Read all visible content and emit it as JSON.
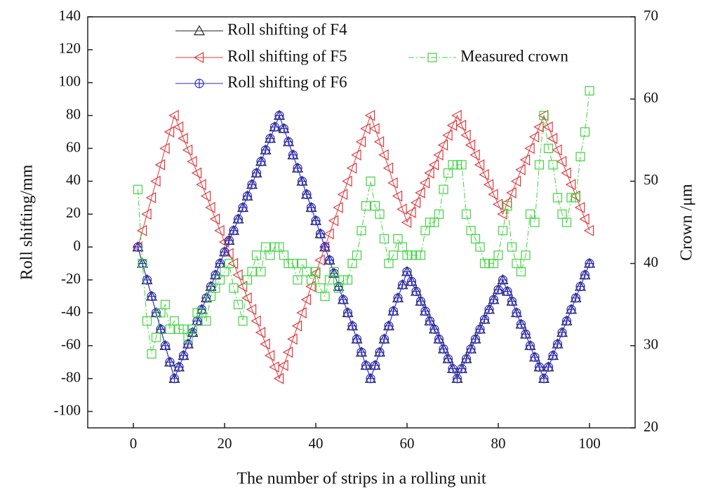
{
  "chart_data": {
    "type": "line",
    "x_label": "The number of strips in a rolling unit",
    "y_label": "Roll shifting/mm",
    "y2_label": "Crown /μm",
    "x": [
      1,
      2,
      3,
      4,
      5,
      6,
      7,
      8,
      9,
      10,
      11,
      12,
      13,
      14,
      15,
      16,
      17,
      18,
      19,
      20,
      21,
      22,
      23,
      24,
      25,
      26,
      27,
      28,
      29,
      30,
      31,
      32,
      33,
      34,
      35,
      36,
      37,
      38,
      39,
      40,
      41,
      42,
      43,
      44,
      45,
      46,
      47,
      48,
      49,
      50,
      51,
      52,
      53,
      54,
      55,
      56,
      57,
      58,
      59,
      60,
      61,
      62,
      63,
      64,
      65,
      66,
      67,
      68,
      69,
      70,
      71,
      72,
      73,
      74,
      75,
      76,
      77,
      78,
      79,
      80,
      81,
      82,
      83,
      84,
      85,
      86,
      87,
      88,
      89,
      90,
      91,
      92,
      93,
      94,
      95,
      96,
      97,
      98,
      99,
      100
    ],
    "xlim": [
      -10,
      110
    ],
    "xticks": [
      0,
      20,
      40,
      60,
      80,
      100
    ],
    "ylim": [
      -110,
      140
    ],
    "yticks": [
      -100,
      -80,
      -60,
      -40,
      -20,
      0,
      20,
      40,
      60,
      80,
      100,
      120,
      140
    ],
    "y2lim": [
      20,
      70
    ],
    "y2ticks": [
      20,
      30,
      40,
      50,
      60,
      70
    ],
    "series": [
      {
        "name": "Roll shifting of F4",
        "color": "#222222",
        "marker": "triangle-up",
        "line": "solid",
        "values": [
          0,
          -10,
          -20,
          -30,
          -40,
          -50,
          -60,
          -70,
          -80,
          -73,
          -66,
          -59,
          -52,
          -45,
          -38,
          -31,
          -24,
          -17,
          -10,
          -3,
          4,
          10,
          17,
          24,
          31,
          38,
          45,
          52,
          59,
          66,
          73,
          80,
          72,
          64,
          56,
          48,
          40,
          32,
          24,
          16,
          8,
          0,
          -8,
          -16,
          -24,
          -32,
          -40,
          -48,
          -56,
          -64,
          -72,
          -80,
          -72,
          -64,
          -56,
          -48,
          -39,
          -31,
          -23,
          -15,
          -21,
          -27,
          -33,
          -39,
          -45,
          -50,
          -56,
          -62,
          -68,
          -74,
          -80,
          -74,
          -68,
          -62,
          -56,
          -50,
          -44,
          -38,
          -32,
          -26,
          -20,
          -27,
          -33,
          -40,
          -47,
          -53,
          -60,
          -67,
          -73,
          -80,
          -73,
          -66,
          -59,
          -52,
          -45,
          -38,
          -31,
          -24,
          -17,
          -10
        ]
      },
      {
        "name": "Roll shifting of F5",
        "color": "#e0383c",
        "marker": "triangle-left",
        "line": "solid",
        "values": [
          0,
          10,
          20,
          30,
          40,
          50,
          60,
          70,
          80,
          73,
          66,
          59,
          52,
          45,
          38,
          31,
          24,
          17,
          10,
          3,
          -4,
          -10,
          -17,
          -24,
          -31,
          -38,
          -45,
          -52,
          -59,
          -66,
          -73,
          -80,
          -72,
          -64,
          -56,
          -48,
          -40,
          -32,
          -24,
          -16,
          -8,
          0,
          8,
          16,
          24,
          32,
          40,
          48,
          56,
          64,
          72,
          80,
          72,
          64,
          56,
          48,
          39,
          31,
          23,
          15,
          21,
          27,
          33,
          39,
          45,
          50,
          56,
          62,
          68,
          74,
          80,
          74,
          68,
          62,
          56,
          50,
          44,
          38,
          32,
          26,
          20,
          27,
          33,
          40,
          47,
          53,
          60,
          67,
          73,
          80,
          73,
          66,
          59,
          52,
          45,
          38,
          31,
          24,
          17,
          10
        ]
      },
      {
        "name": "Roll shifting of F6",
        "color": "#2b2bd0",
        "marker": "circle-plus",
        "line": "solid",
        "values": [
          0,
          -10,
          -20,
          -30,
          -40,
          -50,
          -60,
          -70,
          -80,
          -73,
          -66,
          -59,
          -52,
          -45,
          -38,
          -31,
          -24,
          -17,
          -10,
          -3,
          4,
          10,
          17,
          24,
          31,
          38,
          45,
          52,
          59,
          66,
          73,
          80,
          72,
          64,
          56,
          48,
          40,
          32,
          24,
          16,
          8,
          0,
          -8,
          -16,
          -24,
          -32,
          -40,
          -48,
          -56,
          -64,
          -72,
          -80,
          -72,
          -64,
          -56,
          -48,
          -39,
          -31,
          -23,
          -15,
          -21,
          -27,
          -33,
          -39,
          -45,
          -50,
          -56,
          -62,
          -68,
          -74,
          -80,
          -74,
          -68,
          -62,
          -56,
          -50,
          -44,
          -38,
          -32,
          -26,
          -20,
          -27,
          -33,
          -40,
          -47,
          -53,
          -60,
          -67,
          -73,
          -80,
          -73,
          -66,
          -59,
          -52,
          -45,
          -38,
          -31,
          -24,
          -17,
          -10
        ]
      },
      {
        "name": "Measured crown",
        "color": "#3fd33f",
        "marker": "square",
        "line": "dashdot",
        "axis": "y2",
        "values": [
          49,
          40,
          33,
          29,
          31,
          34,
          35,
          32,
          33,
          32,
          32,
          31,
          32,
          34,
          34,
          33,
          36,
          37,
          38,
          39,
          40,
          37,
          35,
          33,
          38,
          39,
          41,
          39,
          42,
          41,
          42,
          42,
          41,
          40,
          40,
          38,
          40,
          39,
          38,
          39,
          37,
          36,
          38,
          39,
          37,
          38,
          38,
          40,
          41,
          44,
          47,
          50,
          47,
          46,
          43,
          40,
          41,
          43,
          42,
          41,
          41,
          41,
          41,
          44,
          45,
          45,
          46,
          49,
          51,
          52,
          52,
          52,
          46,
          44,
          43,
          42,
          40,
          40,
          40,
          41,
          44,
          47,
          42,
          40,
          39,
          41,
          46,
          45,
          52,
          58,
          54,
          52,
          48,
          46,
          45,
          48,
          48,
          53,
          56,
          61
        ]
      }
    ]
  }
}
